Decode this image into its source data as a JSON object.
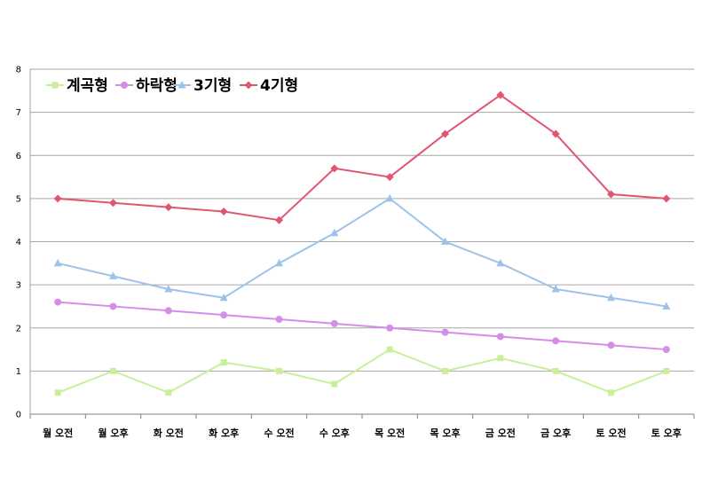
{
  "chart_data": {
    "type": "line",
    "categories": [
      "월 오전",
      "월 오후",
      "화 오전",
      "화 오후",
      "수 오전",
      "수 오후",
      "목 오전",
      "목 오후",
      "금 오전",
      "금 오후",
      "토 오전",
      "토 오후"
    ],
    "ylim": [
      0,
      8
    ],
    "yticks": [
      "0",
      "1",
      "2",
      "3",
      "4",
      "5",
      "6",
      "7",
      "8"
    ],
    "grid": true,
    "legend_position": "top-left",
    "series": [
      {
        "name": "계곡형",
        "color": "#c9ef9a",
        "marker": "square",
        "values": [
          0.5,
          1.0,
          0.5,
          1.2,
          1.0,
          0.7,
          1.5,
          1.0,
          1.3,
          1.0,
          0.5,
          1.0
        ]
      },
      {
        "name": "하락형",
        "color": "#d58ee8",
        "marker": "circle",
        "values": [
          2.6,
          2.5,
          2.4,
          2.3,
          2.2,
          2.1,
          2.0,
          1.9,
          1.8,
          1.7,
          1.6,
          1.5
        ]
      },
      {
        "name": "3기형",
        "color": "#9dc3ea",
        "marker": "triangle",
        "values": [
          3.5,
          3.2,
          2.9,
          2.7,
          3.5,
          4.2,
          5.0,
          4.0,
          3.5,
          2.9,
          2.7,
          2.5
        ]
      },
      {
        "name": "4기형",
        "color": "#e0566f",
        "marker": "diamond",
        "values": [
          5.0,
          4.9,
          4.8,
          4.7,
          4.5,
          5.7,
          5.5,
          6.5,
          7.4,
          6.5,
          5.1,
          5.0
        ]
      }
    ]
  }
}
